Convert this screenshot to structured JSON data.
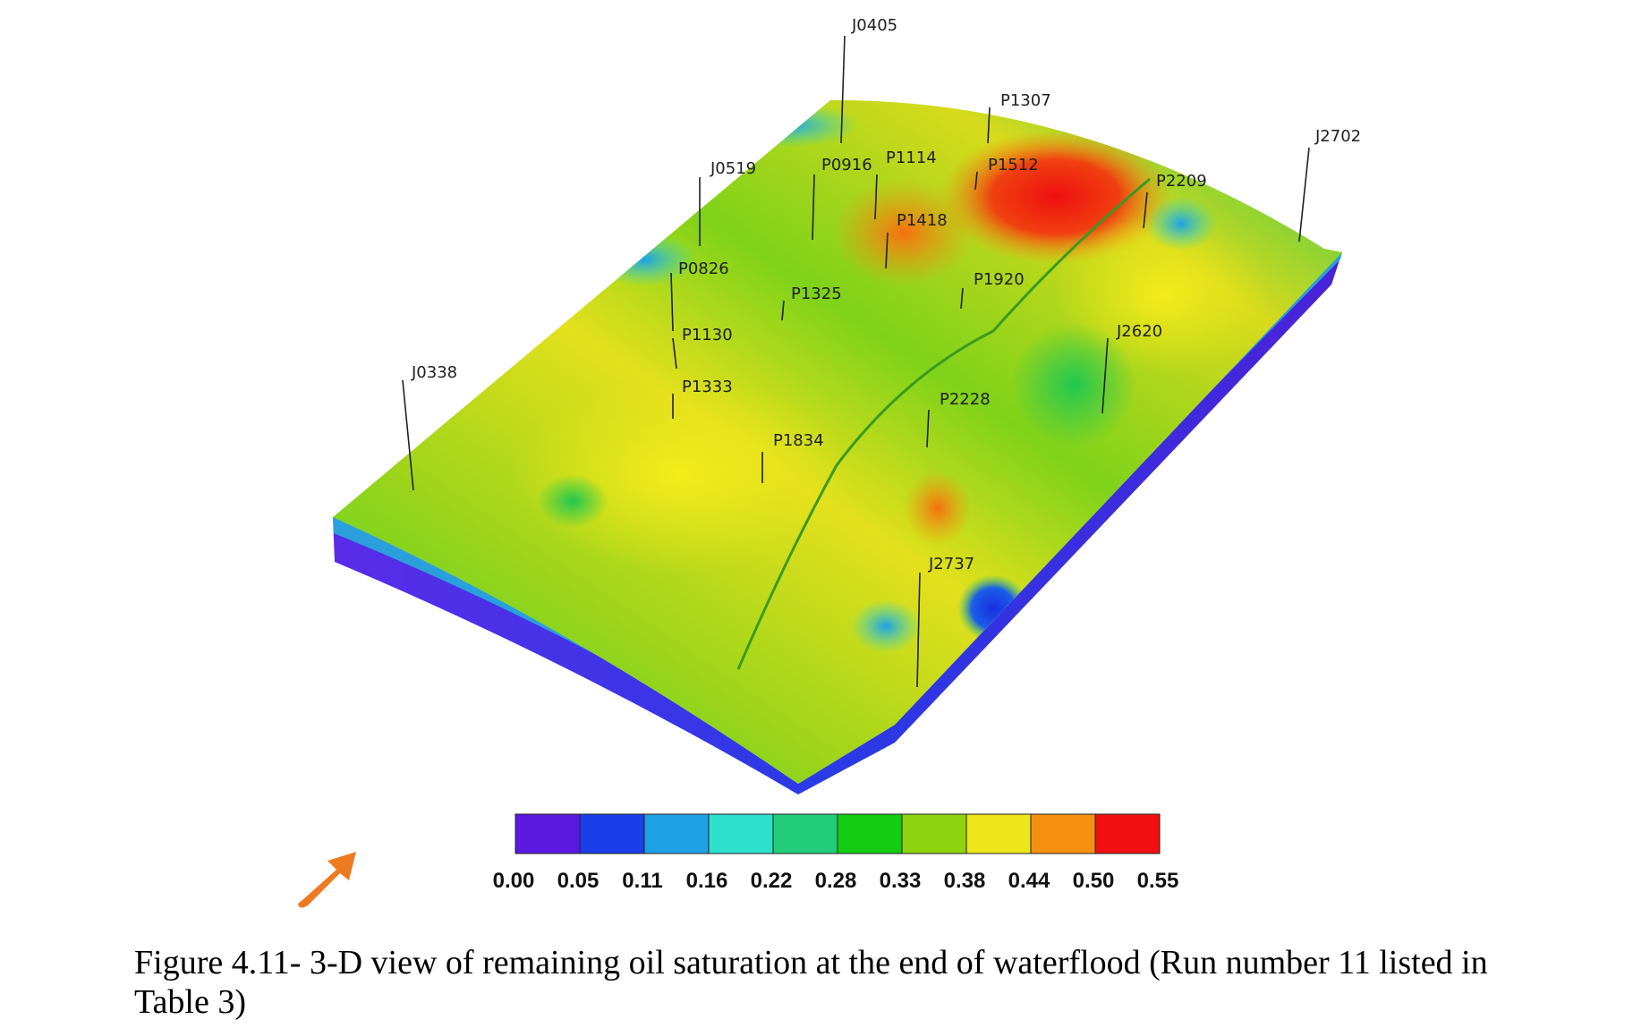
{
  "figure": {
    "caption": "Figure 4.11- 3-D view of remaining oil saturation at the end of waterflood (Run number 11 listed in Table 3)"
  },
  "colorbar": {
    "ticks": [
      "0.00",
      "0.05",
      "0.11",
      "0.16",
      "0.22",
      "0.28",
      "0.33",
      "0.38",
      "0.44",
      "0.50",
      "0.55"
    ],
    "colors": [
      "#5a18e0",
      "#1a3ee8",
      "#1ea0e6",
      "#2de0cc",
      "#22cc78",
      "#14cc14",
      "#8ed40e",
      "#ece61a",
      "#f59010",
      "#f01010"
    ]
  },
  "wells": [
    "J0405",
    "P1307",
    "J2702",
    "J0519",
    "P0916",
    "P1114",
    "P1512",
    "P2209",
    "P1418",
    "P0826",
    "P1920",
    "P1325",
    "J2620",
    "P1130",
    "J0338",
    "P1333",
    "P2228",
    "P1834",
    "J2737"
  ],
  "compass": {
    "icon": "orientation-arrow-icon",
    "color": "#ee7a22"
  }
}
